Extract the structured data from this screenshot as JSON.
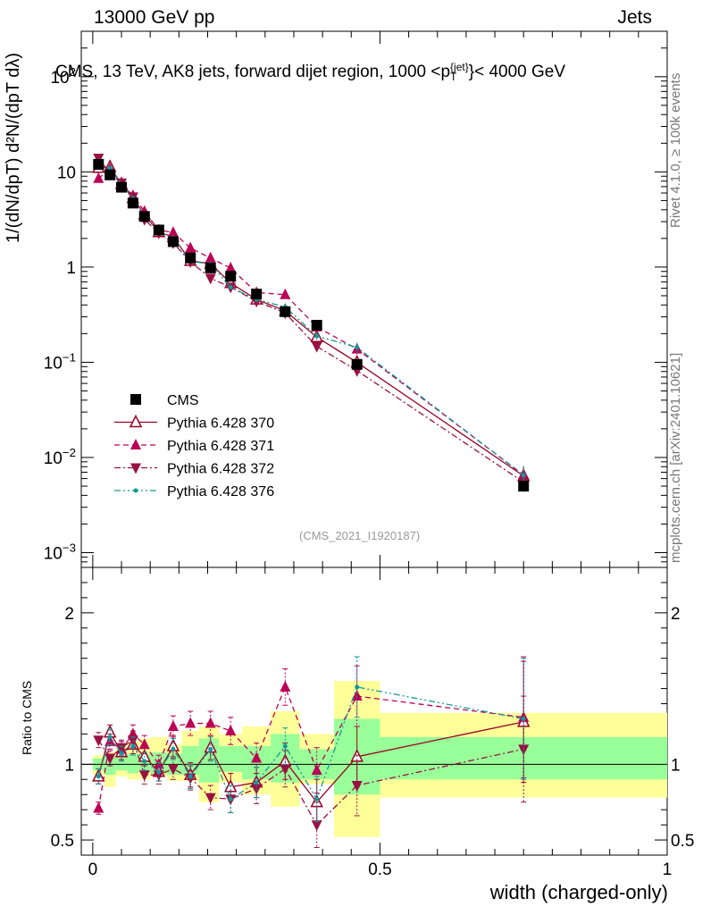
{
  "header": {
    "left_text": "13000 GeV pp",
    "right_text": "Jets"
  },
  "plot": {
    "title": "CMS, 13 TeV, AK8 jets, forward dijet region, 1000 <p",
    "title_sup": "{jet}",
    "title_sub": "T",
    "title_end": "}< 4000 GeV",
    "y_label_main": "1/(dN/dpT) d²N/(dpT dλ)",
    "y_label_ratio": "Ratio to CMS",
    "x_label": "width (charged-only)",
    "side_text_rivet": "Rivet 4.1.0, ≥ 100k events",
    "side_text_mcplots": "mcplots.cern.ch [arXiv:2401.10621]",
    "watermark": "(CMS_2021_I1920187)"
  },
  "colors": {
    "cms": "#000000",
    "p370": "#990022",
    "p371": "#bb0055",
    "p372": "#991144",
    "p376": "#119999",
    "band_yellow": "#ffff99",
    "band_green": "#99ff99"
  },
  "chart_data": {
    "type": "scatter",
    "x_axis": {
      "label": "width (charged-only)",
      "range": [
        -0.02,
        1.0
      ],
      "ticks": [
        "0",
        "0.5",
        "1"
      ]
    },
    "main_y_axis": {
      "scale": "log",
      "range": [
        0.0007,
        300
      ],
      "ticks": [
        "10^-3",
        "10^-2",
        "10^-1",
        "1",
        "10",
        "10^2"
      ]
    },
    "ratio_y_axis": {
      "range": [
        0.4,
        2.3
      ],
      "ticks": [
        "0.5",
        "1",
        "2"
      ]
    },
    "x": [
      0.01,
      0.03,
      0.05,
      0.07,
      0.09,
      0.115,
      0.14,
      0.17,
      0.205,
      0.24,
      0.285,
      0.335,
      0.39,
      0.46,
      0.75
    ],
    "bin_edges": [
      0.0,
      0.02,
      0.04,
      0.06,
      0.08,
      0.1,
      0.13,
      0.155,
      0.185,
      0.22,
      0.26,
      0.31,
      0.36,
      0.42,
      0.5,
      1.0
    ],
    "cms_values": [
      12.0,
      9.3,
      6.9,
      4.7,
      3.4,
      2.45,
      1.85,
      1.25,
      0.98,
      0.8,
      0.52,
      0.34,
      0.245,
      0.095,
      0.005
    ],
    "cms_band_inner": [
      [
        0.96,
        1.04
      ],
      [
        0.93,
        1.05
      ],
      [
        0.96,
        1.06
      ],
      [
        0.94,
        1.07
      ],
      [
        0.95,
        1.07
      ],
      [
        0.94,
        1.08
      ],
      [
        0.93,
        1.07
      ],
      [
        0.93,
        1.12
      ],
      [
        0.88,
        1.17
      ],
      [
        0.95,
        1.12
      ],
      [
        0.9,
        1.12
      ],
      [
        0.88,
        1.2
      ],
      [
        0.9,
        1.1
      ],
      [
        0.8,
        1.3
      ],
      [
        0.9,
        1.18
      ]
    ],
    "cms_band_outer": [
      [
        0.93,
        1.06
      ],
      [
        0.85,
        1.08
      ],
      [
        0.92,
        1.12
      ],
      [
        0.9,
        1.15
      ],
      [
        0.9,
        1.17
      ],
      [
        0.92,
        1.18
      ],
      [
        0.89,
        1.13
      ],
      [
        0.89,
        1.22
      ],
      [
        0.75,
        1.25
      ],
      [
        0.88,
        1.2
      ],
      [
        0.8,
        1.25
      ],
      [
        0.72,
        1.35
      ],
      [
        0.87,
        1.2
      ],
      [
        0.52,
        1.55
      ],
      [
        0.78,
        1.34
      ]
    ],
    "series": [
      {
        "name": "CMS",
        "key": "cms",
        "marker": "square",
        "line": "none"
      },
      {
        "name": "Pythia 6.428 370",
        "key": "p370",
        "marker": "open-triangle-up",
        "line": "solid",
        "ratio": [
          0.92,
          1.21,
          1.08,
          1.13,
          1.05,
          0.95,
          1.12,
          0.93,
          1.11,
          0.85,
          0.88,
          1.02,
          0.75,
          1.05,
          1.28
        ],
        "ratio_err": [
          0.05,
          0.05,
          0.05,
          0.06,
          0.06,
          0.06,
          0.07,
          0.08,
          0.08,
          0.09,
          0.1,
          0.12,
          0.15,
          0.2,
          0.4
        ]
      },
      {
        "name": "Pythia 6.428 371",
        "key": "p371",
        "marker": "filled-triangle-up",
        "line": "dashed",
        "ratio": [
          0.71,
          1.15,
          1.1,
          1.2,
          1.13,
          1.0,
          1.25,
          1.27,
          1.27,
          1.22,
          1.04,
          1.51,
          0.96,
          1.45,
          1.31
        ],
        "ratio_err": [
          0.04,
          0.05,
          0.05,
          0.06,
          0.06,
          0.06,
          0.07,
          0.08,
          0.08,
          0.09,
          0.1,
          0.12,
          0.15,
          0.2,
          0.4
        ]
      },
      {
        "name": "Pythia 6.428 372",
        "key": "p372",
        "marker": "filled-triangle-down",
        "line": "dash-dot",
        "ratio": [
          1.16,
          1.04,
          1.11,
          1.16,
          0.93,
          0.93,
          0.97,
          0.91,
          0.78,
          0.77,
          0.84,
          0.97,
          0.6,
          0.86,
          1.1
        ],
        "ratio_err": [
          0.05,
          0.05,
          0.05,
          0.06,
          0.06,
          0.06,
          0.07,
          0.08,
          0.08,
          0.09,
          0.1,
          0.12,
          0.15,
          0.2,
          0.35
        ]
      },
      {
        "name": "Pythia 6.428 376",
        "key": "p376",
        "marker": "dot",
        "line": "dash-dot-dot",
        "ratio": [
          0.92,
          1.18,
          1.07,
          1.12,
          1.02,
          0.95,
          1.1,
          0.92,
          1.1,
          0.77,
          0.88,
          1.12,
          0.77,
          1.51,
          1.3
        ],
        "ratio_err": [
          0.05,
          0.05,
          0.05,
          0.06,
          0.06,
          0.06,
          0.07,
          0.08,
          0.08,
          0.09,
          0.1,
          0.12,
          0.15,
          0.2,
          0.4
        ]
      }
    ],
    "legend_position": "lower-left"
  }
}
